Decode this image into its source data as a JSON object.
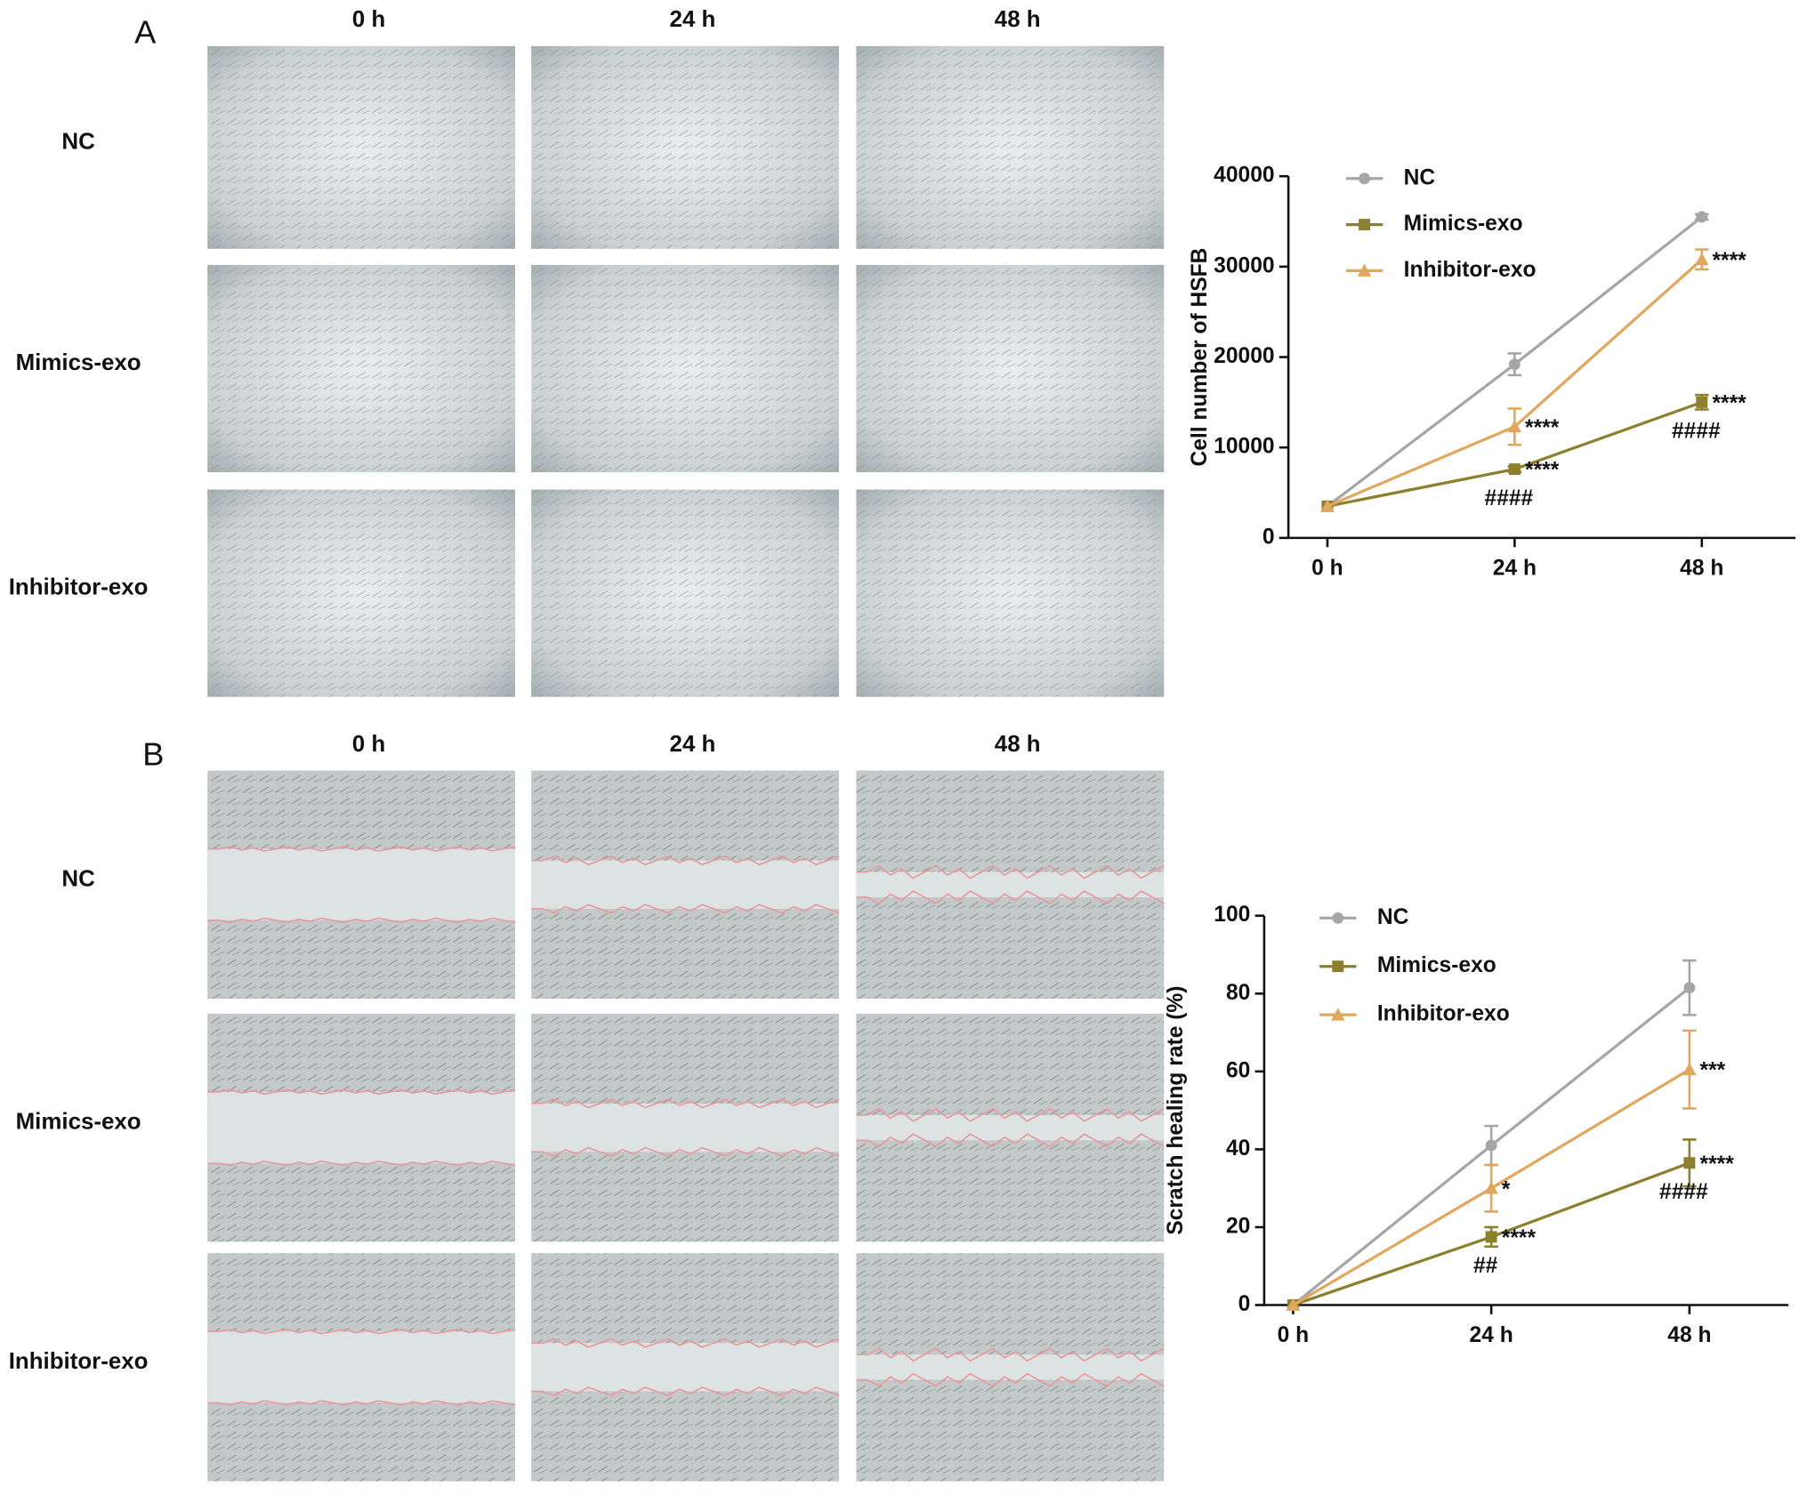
{
  "panels": [
    {
      "label": "A",
      "columns": [
        "0 h",
        "24 h",
        "48 h"
      ],
      "rows": [
        "NC",
        "Mimics-exo",
        "Inhibitor-exo"
      ]
    },
    {
      "label": "B",
      "columns": [
        "0 h",
        "24 h",
        "48 h"
      ],
      "rows": [
        "NC",
        "Mimics-exo",
        "Inhibitor-exo"
      ]
    }
  ],
  "chart_data": [
    {
      "type": "line",
      "y_label": "Cell number of HSFB",
      "x": [
        0,
        24,
        48
      ],
      "xlim": [
        -5,
        60
      ],
      "xticks": [
        {
          "value": 0,
          "label": "0 h"
        },
        {
          "value": 24,
          "label": "24 h"
        },
        {
          "value": 48,
          "label": "48 h"
        }
      ],
      "ylim": [
        0,
        40000
      ],
      "yticks": [
        0,
        10000,
        20000,
        30000,
        40000
      ],
      "series": [
        {
          "name": "NC",
          "color": "#a6a6a6",
          "marker": "circle",
          "values": [
            3500,
            19200,
            35500
          ],
          "errors": [
            0,
            1200,
            300
          ]
        },
        {
          "name": "Mimics-exo",
          "color": "#8c7f2e",
          "marker": "square",
          "values": [
            3500,
            7600,
            15000
          ],
          "errors": [
            0,
            300,
            800
          ],
          "stars": [
            null,
            "****",
            "****"
          ],
          "hashes": [
            null,
            "####",
            "####"
          ]
        },
        {
          "name": "Inhibitor-exo",
          "color": "#e0a85e",
          "marker": "triangle",
          "values": [
            3500,
            12300,
            30800
          ],
          "errors": [
            0,
            2000,
            1100
          ],
          "stars": [
            null,
            "****",
            "****"
          ]
        }
      ]
    },
    {
      "type": "line",
      "y_label": "Scratch healing rate (%)",
      "x": [
        0,
        24,
        48
      ],
      "xlim": [
        -3.5,
        60
      ],
      "xticks": [
        {
          "value": 0,
          "label": "0 h"
        },
        {
          "value": 24,
          "label": "24 h"
        },
        {
          "value": 48,
          "label": "48 h"
        }
      ],
      "ylim": [
        0,
        100
      ],
      "yticks": [
        0,
        20,
        40,
        60,
        80,
        100
      ],
      "series": [
        {
          "name": "NC",
          "color": "#a6a6a6",
          "marker": "circle",
          "values": [
            0,
            41,
            81.5
          ],
          "errors": [
            0,
            5,
            7
          ]
        },
        {
          "name": "Mimics-exo",
          "color": "#8c7f2e",
          "marker": "square",
          "values": [
            0,
            17.5,
            36.5
          ],
          "errors": [
            0,
            2.5,
            6
          ],
          "stars": [
            null,
            "****",
            "****"
          ],
          "hashes": [
            null,
            "##",
            "####"
          ]
        },
        {
          "name": "Inhibitor-exo",
          "color": "#e0a85e",
          "marker": "triangle",
          "values": [
            0,
            30,
            60.5
          ],
          "errors": [
            0,
            6,
            10
          ],
          "stars": [
            null,
            "*",
            "***"
          ]
        }
      ]
    }
  ]
}
